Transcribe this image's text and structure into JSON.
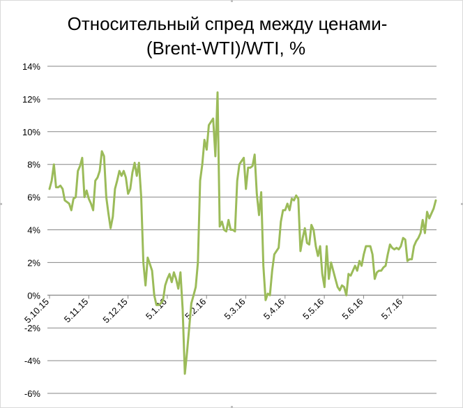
{
  "chart_data": {
    "type": "line",
    "title_lines": [
      "Относительный спред между ценами-",
      "(Brent-WTI)/WTI, %"
    ],
    "xlabel": "",
    "ylabel": "",
    "ylim": [
      -6,
      14
    ],
    "y_ticks": [
      "14%",
      "12%",
      "10%",
      "8%",
      "6%",
      "4%",
      "2%",
      "0%",
      "-2%",
      "-4%",
      "-6%"
    ],
    "x_ticks": [
      "5.10.15",
      "5.11.15",
      "5.12.15",
      "5.1.16",
      "5.2.16",
      "5.3.16",
      "5.4.16",
      "5.5.16",
      "5.6.16",
      "5.7.16"
    ],
    "grid": true,
    "line_color": "#9bbb59",
    "series": [
      {
        "values": [
          6.5,
          7.0,
          8.0,
          6.6,
          6.6,
          6.7,
          6.5,
          5.8,
          5.7,
          5.6,
          5.2,
          5.9,
          6.0,
          7.6,
          7.9,
          8.4,
          6.0,
          6.4,
          5.9,
          5.6,
          5.2,
          7.0,
          7.2,
          7.6,
          8.8,
          8.5,
          6.0,
          5.0,
          4.1,
          4.8,
          6.5,
          7.0,
          7.6,
          7.3,
          7.6,
          7.2,
          6.2,
          6.5,
          7.5,
          8.1,
          7.3,
          8.1,
          6.0,
          2.0,
          0.6,
          2.3,
          1.9,
          1.5,
          0.0,
          -0.6,
          -0.6,
          -0.5,
          -0.3,
          0.6,
          1.0,
          1.3,
          0.8,
          1.4,
          1.0,
          0.4,
          1.4,
          -0.8,
          -4.8,
          -3.5,
          -2.0,
          -0.5,
          0.0,
          0.5,
          2.0,
          7.0,
          8.0,
          9.5,
          8.9,
          10.4,
          10.6,
          10.8,
          8.5,
          12.4,
          4.2,
          4.5,
          4.0,
          3.9,
          4.6,
          4.0,
          4.0,
          3.9,
          7.0,
          8.0,
          8.2,
          8.4,
          6.5,
          7.8,
          7.8,
          7.9,
          8.6,
          6.2,
          4.9,
          6.3,
          1.8,
          -0.3,
          0.1,
          0.0,
          1.5,
          2.5,
          2.7,
          2.9,
          4.5,
          5.2,
          5.2,
          5.6,
          5.2,
          5.9,
          5.8,
          6.1,
          5.9,
          2.7,
          3.5,
          4.1,
          3.2,
          3.1,
          4.3,
          4.0,
          3.0,
          2.4,
          3.0,
          1.3,
          0.5,
          3.0,
          1.0,
          2.0,
          1.5,
          1.0,
          0.5,
          0.3,
          0.6,
          0.5,
          0.0,
          1.3,
          1.2,
          1.5,
          1.8,
          1.5,
          2.1,
          1.8,
          2.5,
          3.0,
          3.0,
          3.0,
          2.5,
          1.0,
          1.4,
          1.5,
          1.5,
          1.7,
          1.8,
          2.5,
          3.1,
          2.9,
          2.8,
          2.9,
          2.8,
          3.0,
          3.5,
          3.4,
          2.1,
          2.2,
          2.2,
          3.0,
          3.3,
          3.5,
          3.8,
          4.6,
          3.8,
          5.1,
          4.7,
          5.0,
          5.3,
          5.8
        ]
      }
    ]
  }
}
